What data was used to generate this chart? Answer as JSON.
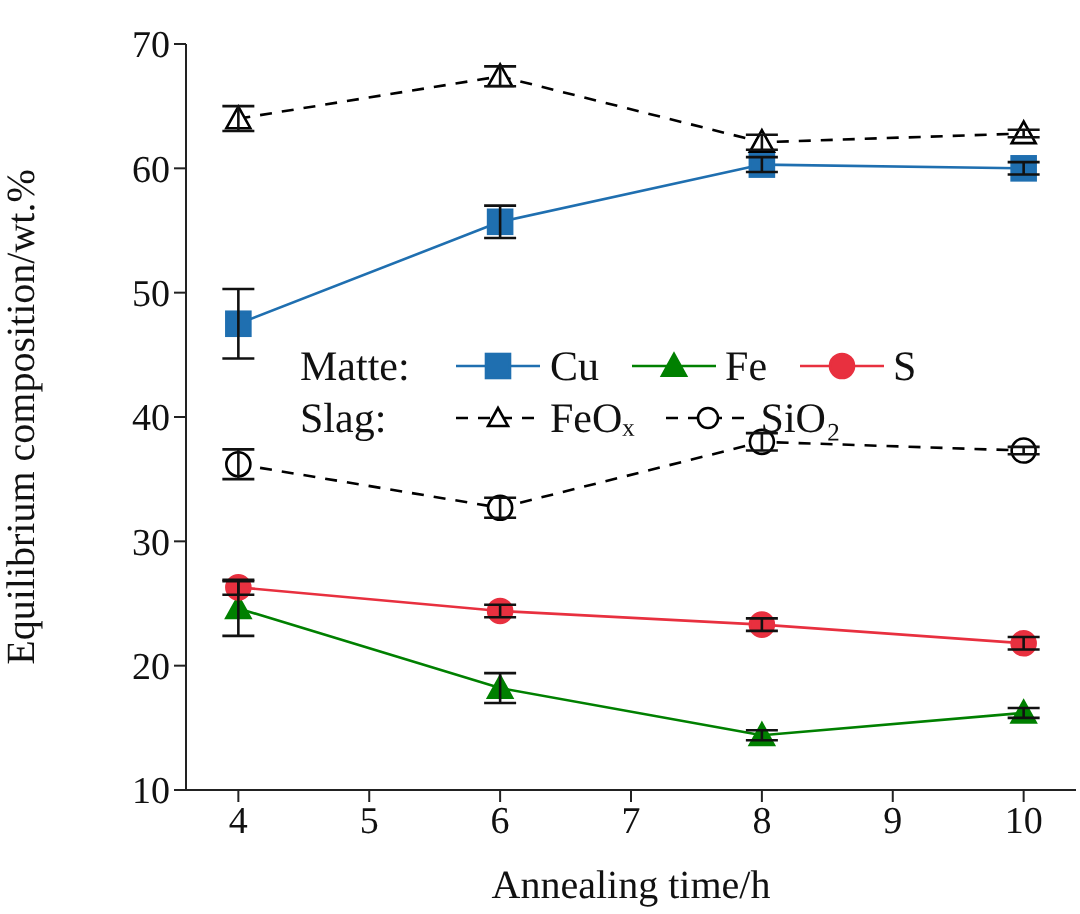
{
  "chart_data": {
    "type": "line",
    "xlabel": "Annealing time/h",
    "ylabel": "Equilibrium composition/wt.%",
    "x": [
      4,
      6,
      8,
      10
    ],
    "xlim": [
      3.6,
      10.4
    ],
    "xticks": [
      4,
      5,
      6,
      7,
      8,
      9,
      10
    ],
    "ylim": [
      10,
      70
    ],
    "yticks": [
      10,
      20,
      30,
      40,
      50,
      60,
      70
    ],
    "grid": false,
    "legend": "center",
    "annotations": [
      "Matte:",
      "Slag:"
    ],
    "series": [
      {
        "name": "Cu",
        "color": "#1f6fb0",
        "marker": "square",
        "line_style": "solid",
        "values": [
          47.5,
          55.7,
          60.3,
          60.0
        ],
        "errors": [
          2.8,
          1.3,
          0.6,
          0.5
        ]
      },
      {
        "name": "Fe",
        "color": "#008000",
        "marker": "triangle",
        "line_style": "solid",
        "values": [
          24.6,
          18.2,
          14.4,
          16.2
        ],
        "errors": [
          2.2,
          1.2,
          0.4,
          0.4
        ]
      },
      {
        "name": "S",
        "color": "#e8303f",
        "marker": "circle",
        "line_style": "solid",
        "values": [
          26.3,
          24.4,
          23.3,
          21.8
        ],
        "errors": [
          0.6,
          0.5,
          0.5,
          0.5
        ]
      },
      {
        "name": "FeOₓ",
        "color": "#000000",
        "marker": "triangle",
        "line_style": "dashed",
        "values": [
          64.0,
          67.4,
          62.1,
          62.8
        ],
        "errors": [
          1.0,
          0.8,
          0.6,
          0.3
        ]
      },
      {
        "name": "SiO₂",
        "color": "#000000",
        "marker": "circle",
        "line_style": "dashed",
        "values": [
          36.2,
          32.7,
          38.0,
          37.3
        ],
        "errors": [
          1.2,
          0.8,
          0.7,
          0.3
        ]
      }
    ]
  }
}
